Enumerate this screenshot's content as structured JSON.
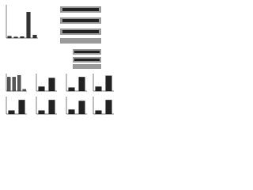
{
  "chart_data": [
    {
      "type": "bar",
      "values": [
        0.5,
        0.3,
        0.4,
        7,
        0.8
      ],
      "ylim": [
        0,
        9
      ],
      "color": "#333333"
    },
    {
      "type": "bar",
      "values": [
        4,
        4,
        4.5,
        0.5
      ],
      "ylim": [
        0,
        5
      ],
      "color": "#555555"
    },
    {
      "type": "bar",
      "values": [
        1,
        3
      ],
      "ylim": [
        0,
        4
      ],
      "color": "#222222"
    },
    {
      "type": "bar",
      "values": [
        1,
        4
      ],
      "ylim": [
        0,
        5
      ],
      "color": "#222222"
    },
    {
      "type": "bar",
      "values": [
        1,
        3.5
      ],
      "ylim": [
        0,
        4
      ],
      "color": "#222222"
    },
    {
      "type": "bar",
      "values": [
        1,
        4
      ],
      "ylim": [
        0,
        5
      ],
      "color": "#222222"
    },
    {
      "type": "bar",
      "values": [
        1,
        4
      ],
      "ylim": [
        0,
        5
      ],
      "color": "#222222"
    },
    {
      "type": "bar",
      "values": [
        1,
        3
      ],
      "ylim": [
        0,
        4
      ],
      "color": "#222222"
    },
    {
      "type": "bar",
      "values": [
        1,
        4
      ],
      "ylim": [
        0,
        5
      ],
      "color": "#222222"
    }
  ]
}
